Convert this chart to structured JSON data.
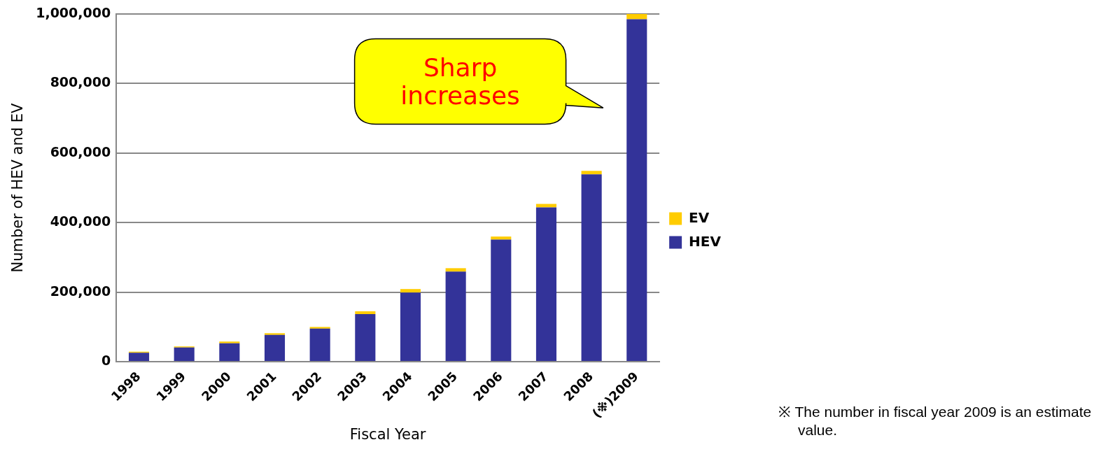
{
  "chart_data": {
    "type": "bar",
    "stacked": true,
    "xlabel": "Fiscal Year",
    "ylabel": "Number of HEV and EV",
    "categories": [
      "1998",
      "1999",
      "2000",
      "2001",
      "2002",
      "2003",
      "2004",
      "2005",
      "2006",
      "2007",
      "2008",
      "(※)2009"
    ],
    "series": [
      {
        "name": "HEV",
        "color": "#333399",
        "values": [
          26000,
          41000,
          53000,
          77000,
          95000,
          137000,
          199000,
          259000,
          351000,
          444000,
          539000,
          985000
        ]
      },
      {
        "name": "EV",
        "color": "#ffcc00",
        "values": [
          3000,
          3000,
          5000,
          5000,
          5000,
          8000,
          10000,
          10000,
          9000,
          10000,
          10000,
          15000
        ]
      }
    ],
    "ylim": [
      0,
      1000000
    ],
    "yticks": [
      0,
      {
        "value": 200000,
        "label": "200,000"
      },
      {
        "value": 400000,
        "label": "400,000"
      },
      {
        "value": 600000,
        "label": "600,000"
      },
      {
        "value": 800000,
        "label": "800,000"
      },
      {
        "value": 1000000,
        "label": "1,000,000"
      }
    ],
    "grid": "y",
    "legend": "right",
    "annotations": [
      "Sharp increases",
      "※ The number in fiscal year 2009 is an estimate value."
    ]
  }
}
